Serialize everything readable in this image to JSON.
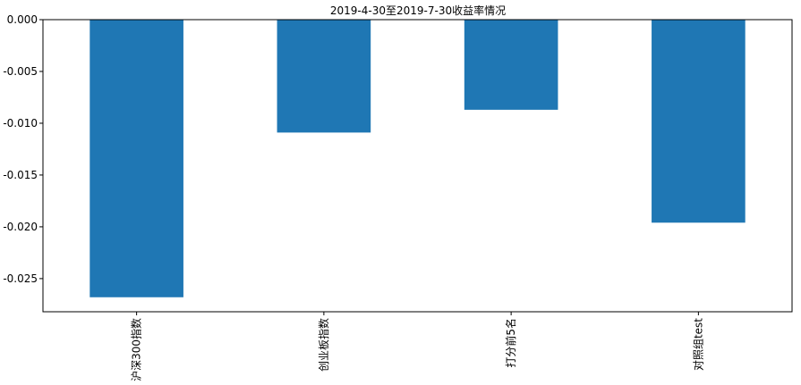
{
  "chart_data": {
    "type": "bar",
    "title": "2019-4-30至2019-7-30收益率情况",
    "categories": [
      "沪深300指数",
      "创业板指数",
      "打分前5名",
      "对照组test"
    ],
    "values": [
      -0.0268,
      -0.0109,
      -0.0087,
      -0.0196
    ],
    "ylim": [
      -0.0282,
      0.0
    ],
    "yticks": [
      0.0,
      -0.005,
      -0.01,
      -0.015,
      -0.02,
      -0.025
    ],
    "ytick_labels": [
      "0.000",
      "-0.005",
      "-0.010",
      "-0.015",
      "-0.020",
      "-0.025"
    ],
    "bar_color": "#1f77b4",
    "grid": false,
    "legend": "none"
  }
}
